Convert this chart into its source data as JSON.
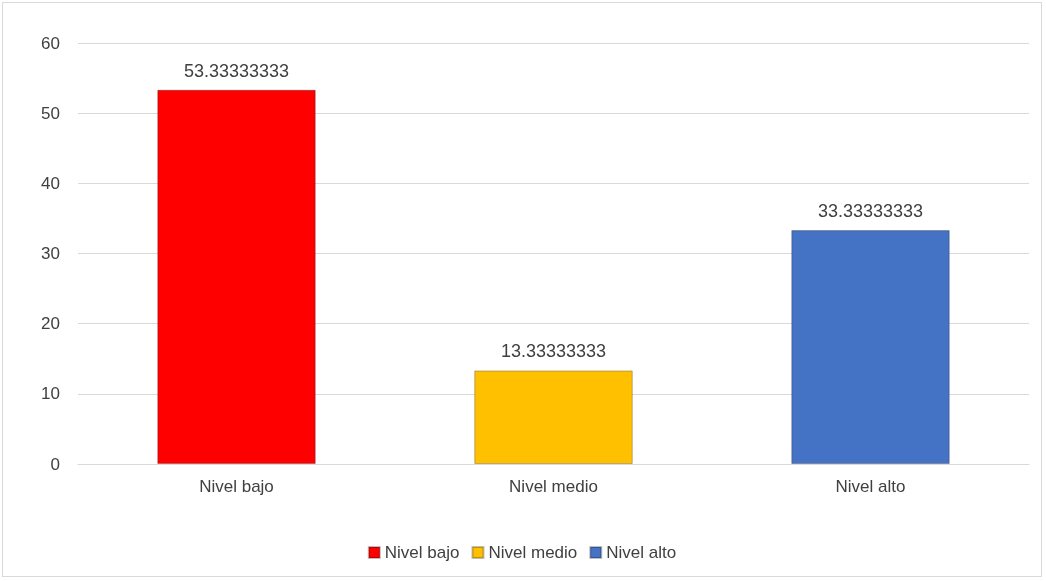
{
  "chart_data": {
    "type": "bar",
    "categories": [
      "Nivel bajo",
      "Nivel medio",
      "Nivel alto"
    ],
    "series": [
      {
        "name": "Nivel bajo",
        "color": "#ff0000",
        "values": [
          53.33333333,
          null,
          null
        ]
      },
      {
        "name": "Nivel medio",
        "color": "#ffc000",
        "values": [
          null,
          13.33333333,
          null
        ]
      },
      {
        "name": "Nivel alto",
        "color": "#4472c4",
        "values": [
          null,
          null,
          33.33333333
        ]
      }
    ],
    "stacked": true,
    "ylim": [
      0,
      60
    ],
    "yticks": [
      0,
      10,
      20,
      30,
      40,
      50,
      60
    ],
    "grid": "y",
    "legend": "bottom",
    "data_labels": true
  }
}
